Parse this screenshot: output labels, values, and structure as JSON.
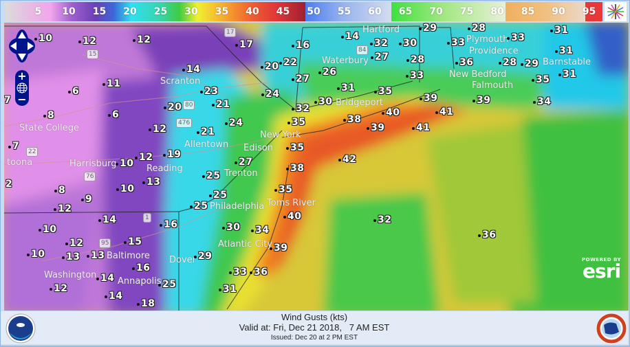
{
  "legend": {
    "ticks": [
      "5",
      "10",
      "15",
      "20",
      "25",
      "30",
      "35",
      "40",
      "45",
      "50",
      "55",
      "60",
      "65",
      "70",
      "75",
      "80",
      "85",
      "90",
      "95"
    ],
    "icon": "color-wheel-icon"
  },
  "map": {
    "stations": [
      "10",
      "12",
      "12",
      "17",
      "16",
      "14",
      "32",
      "30",
      "29",
      "28",
      "33",
      "33",
      "31",
      "31",
      "14",
      "20",
      "22",
      "27",
      "26",
      "27",
      "28",
      "36",
      "28",
      "29",
      "33",
      "35",
      "31",
      "11",
      "6",
      "7",
      "23",
      "21",
      "24",
      "31",
      "35",
      "39",
      "39",
      "34",
      "32",
      "30",
      "8",
      "6",
      "20",
      "24",
      "35",
      "38",
      "40",
      "41",
      "39",
      "41",
      "12",
      "21",
      "35",
      "42",
      "7",
      "12",
      "19",
      "27",
      "38",
      "10",
      "25",
      "13",
      "10",
      "8",
      "9",
      "25",
      "35",
      "12",
      "25",
      "40",
      "32",
      "14",
      "16",
      "30",
      "34",
      "36",
      "10",
      "12",
      "15",
      "13",
      "13",
      "10",
      "16",
      "29",
      "39",
      "33",
      "36",
      "14",
      "25",
      "12",
      "14",
      "31",
      "18",
      "2"
    ],
    "cities": [
      "State College",
      "toona",
      "Scranton",
      "Allentown",
      "Reading",
      "Harrisburg",
      "Philadelphia",
      "Trenton",
      "Edison",
      "New York",
      "Toms River",
      "Atlantic City",
      "Dover",
      "Baltimore",
      "Annapolis",
      "Washington",
      "Bridgeport",
      "Waterbury",
      "Hartford",
      "Providence",
      "Plymouth",
      "New Bedford",
      "Falmouth",
      "Barnstable"
    ],
    "shields": [
      "15",
      "17",
      "80",
      "476",
      "22",
      "76",
      "1",
      "95",
      "84"
    ],
    "attribution": {
      "powered_by": "POWERED BY",
      "brand": "esri"
    }
  },
  "controls": {
    "zoom_in": "+",
    "zoom_out": "−"
  },
  "footer": {
    "title": "Wind Gusts (kts)",
    "valid": "Valid at: Fri, Dec 21 2018,   7 AM EST",
    "issued": "Issued: Dec 20 at 2 PM EST"
  }
}
